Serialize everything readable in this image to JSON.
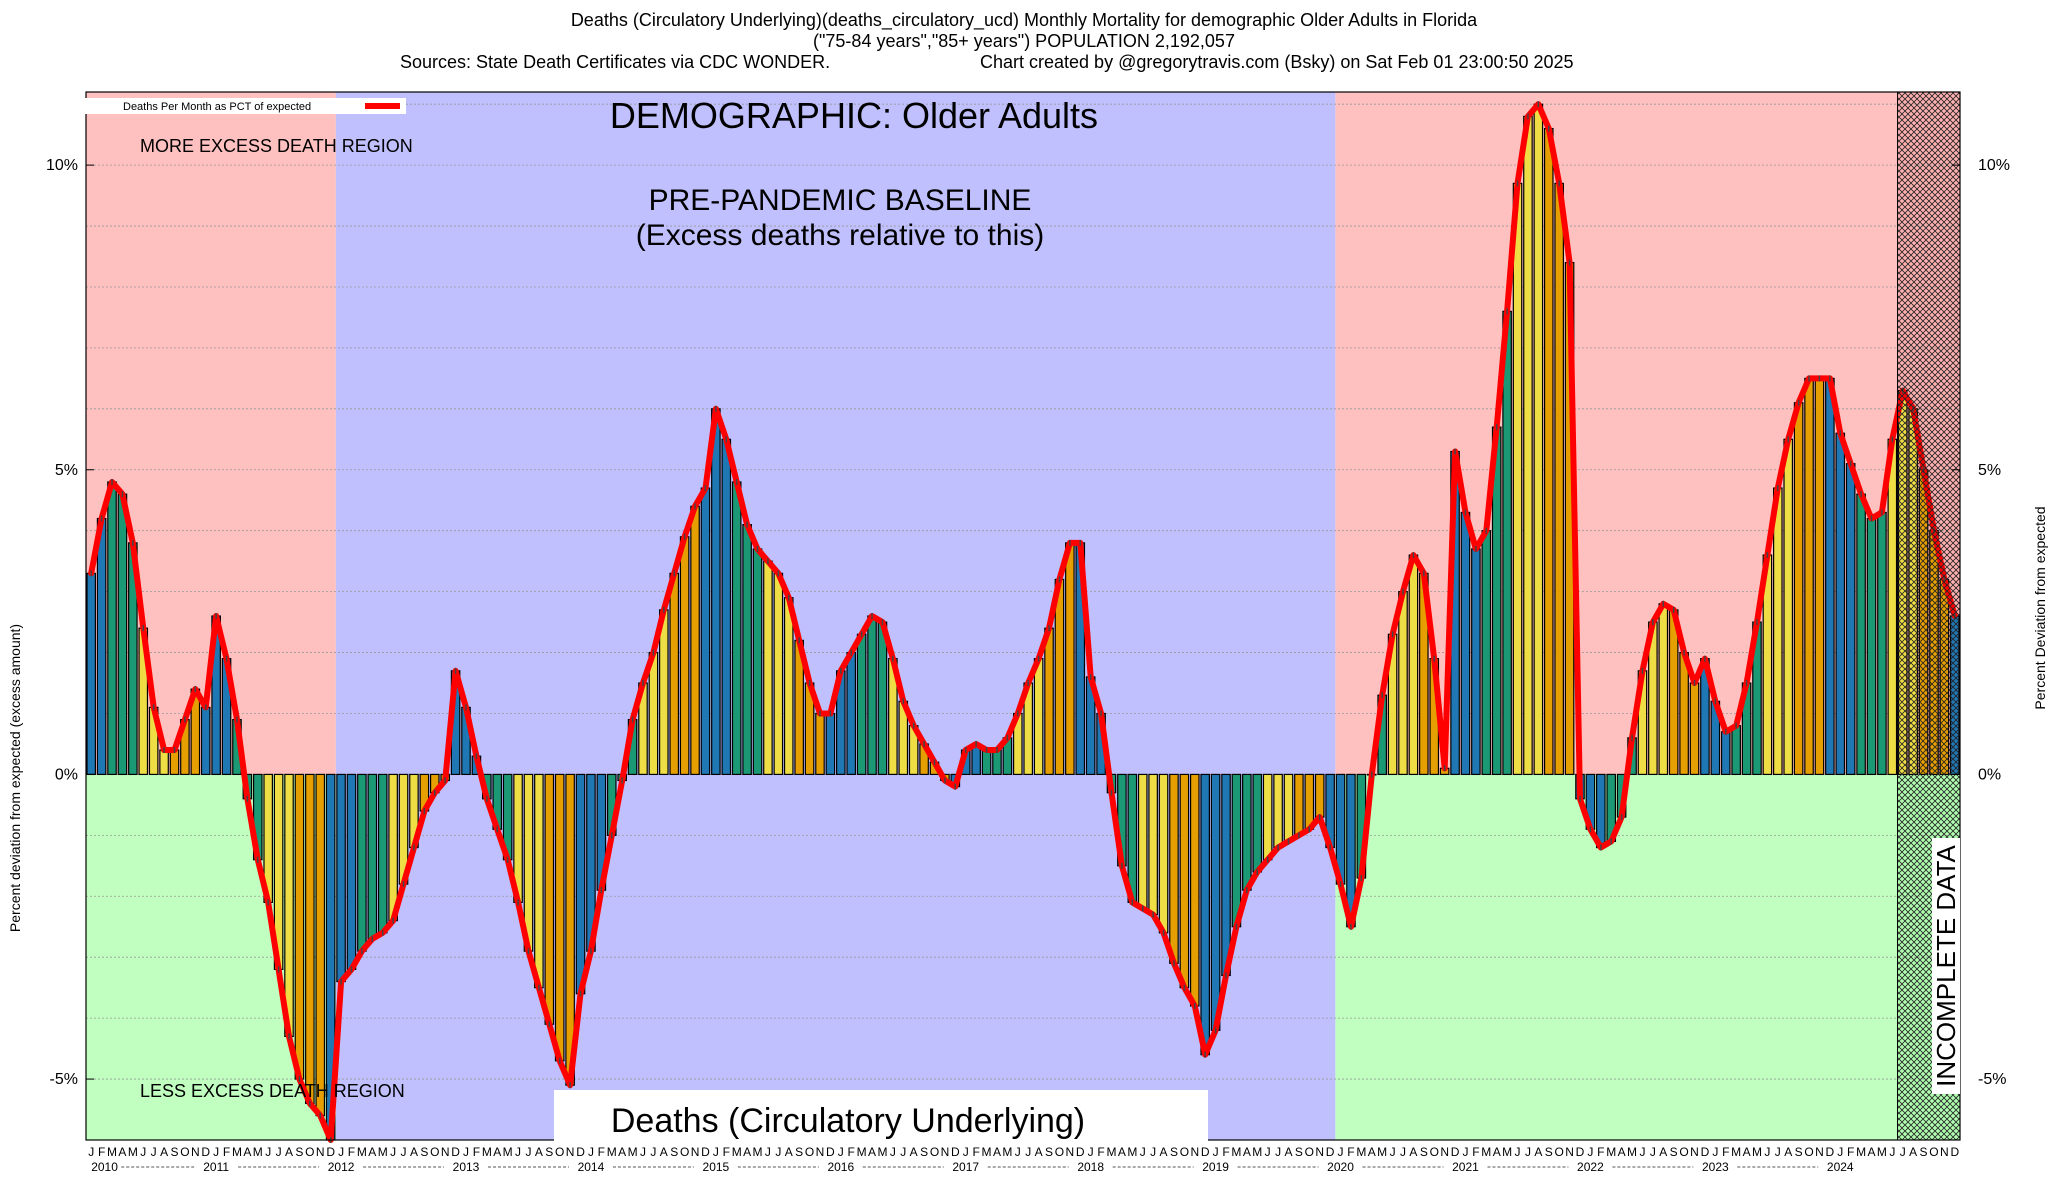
{
  "header": {
    "title_line1": "Deaths (Circulatory Underlying)(deaths_circulatory_ucd) Monthly Mortality for demographic Older Adults in Florida",
    "title_line2": "(\"75-84 years\",\"85+ years\") POPULATION 2,192,057",
    "sources": "Sources: State Death Certificates via CDC WONDER.",
    "credit": "Chart created by @gregorytravis.com (Bsky) on Sat Feb 01 23:00:50 2025"
  },
  "annotations": {
    "demographic": "DEMOGRAPHIC: Older Adults",
    "baseline_line1": "PRE-PANDEMIC BASELINE",
    "baseline_line2": "(Excess deaths relative to this)",
    "more_excess": "MORE EXCESS DEATH REGION",
    "less_excess": "LESS EXCESS DEATH REGION",
    "bottom_title": "Deaths (Circulatory Underlying)",
    "incomplete": "INCOMPLETE DATA"
  },
  "chart_data": {
    "type": "bar",
    "title": "Deaths (Circulatory Underlying)(deaths_circulatory_ucd) Monthly Mortality for demographic Older Adults in Florida",
    "ylabel_left": "Percent deviation from expected (excess amount)",
    "ylabel_right": "Percent Deviation from expected",
    "legend": "Deaths Per Month as PCT of expected",
    "legend_position": "top-left",
    "ylim": [
      -6.0,
      11.2
    ],
    "yticks": [
      -5,
      0,
      5,
      10
    ],
    "ytick_labels": [
      "-5%",
      "0%",
      "5%",
      "10%"
    ],
    "grid": true,
    "x_start": "2010-01",
    "x_end": "2024-12",
    "month_letters": [
      "J",
      "F",
      "M",
      "A",
      "M",
      "J",
      "J",
      "A",
      "S",
      "O",
      "N",
      "D"
    ],
    "years": [
      "2010",
      "2011",
      "2012",
      "2013",
      "2014",
      "2015",
      "2016",
      "2017",
      "2018",
      "2019",
      "2020",
      "2021",
      "2022",
      "2023",
      "2024"
    ],
    "baseline_period": [
      "2012-01",
      "2019-12"
    ],
    "incomplete_period": [
      "2024-07",
      "2024-12"
    ],
    "season_colors": {
      "winter": "#1f77b4",
      "spring": "#1a9974",
      "summer": "#eedd44",
      "fall": "#e69f00"
    },
    "line_color": "#ff0000",
    "values": [
      3.3,
      4.2,
      4.8,
      4.6,
      3.8,
      2.4,
      1.1,
      0.4,
      0.4,
      0.9,
      1.4,
      1.1,
      2.6,
      1.9,
      0.9,
      -0.4,
      -1.4,
      -2.1,
      -3.2,
      -4.3,
      -5.0,
      -5.4,
      -5.6,
      -6.0,
      -3.4,
      -3.2,
      -2.9,
      -2.7,
      -2.6,
      -2.4,
      -1.8,
      -1.2,
      -0.6,
      -0.3,
      -0.1,
      1.7,
      1.1,
      0.3,
      -0.4,
      -0.9,
      -1.4,
      -2.1,
      -2.9,
      -3.5,
      -4.1,
      -4.7,
      -5.1,
      -3.6,
      -2.9,
      -1.9,
      -1.0,
      -0.1,
      0.9,
      1.5,
      2.0,
      2.7,
      3.3,
      3.9,
      4.4,
      4.7,
      6.0,
      5.5,
      4.8,
      4.1,
      3.7,
      3.5,
      3.3,
      2.9,
      2.2,
      1.5,
      1.0,
      1.0,
      1.7,
      2.0,
      2.3,
      2.6,
      2.5,
      1.9,
      1.2,
      0.8,
      0.5,
      0.2,
      -0.1,
      -0.2,
      0.4,
      0.5,
      0.4,
      0.4,
      0.6,
      1.0,
      1.5,
      1.9,
      2.4,
      3.2,
      3.8,
      3.8,
      1.6,
      1.0,
      -0.3,
      -1.5,
      -2.1,
      -2.2,
      -2.3,
      -2.6,
      -3.1,
      -3.5,
      -3.8,
      -4.6,
      -4.2,
      -3.3,
      -2.5,
      -1.9,
      -1.6,
      -1.4,
      -1.2,
      -1.1,
      -1.0,
      -0.9,
      -0.7,
      -1.2,
      -1.8,
      -2.5,
      -1.7,
      0.0,
      1.3,
      2.3,
      3.0,
      3.6,
      3.3,
      1.9,
      0.1,
      5.3,
      4.3,
      3.7,
      4.0,
      5.7,
      7.6,
      9.7,
      10.8,
      11.0,
      10.6,
      9.7,
      8.4,
      -0.4,
      -0.9,
      -1.2,
      -1.1,
      -0.7,
      0.6,
      1.7,
      2.5,
      2.8,
      2.7,
      2.0,
      1.5,
      1.9,
      1.2,
      0.7,
      0.8,
      1.5,
      2.5,
      3.6,
      4.7,
      5.5,
      6.1,
      6.5,
      6.5,
      6.5,
      5.6,
      5.1,
      4.6,
      4.2,
      4.3,
      5.5,
      6.3,
      6.0,
      5.0,
      4.0,
      3.2,
      2.6
    ]
  }
}
